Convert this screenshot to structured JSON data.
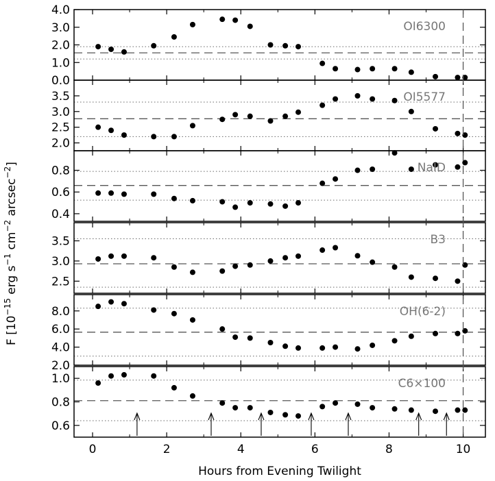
{
  "chart_data": {
    "type": "scatter",
    "xlabel": "Hours from Evening Twilight",
    "ylabel": "F [10^-15 erg s^-1 cm^-2 arcsec^-2]",
    "ylabel_parts": {
      "pre": "F [10",
      "exp1": "−15",
      "mid1": " erg s",
      "exp2": "−1",
      "mid2": " cm",
      "exp3": "−2",
      "mid3": " arcsec",
      "exp4": "−2",
      "post": "]"
    },
    "xlim": [
      -0.5,
      10.6
    ],
    "xticks": [
      0,
      2,
      4,
      6,
      8,
      10
    ],
    "xtick_labels": [
      "0",
      "2",
      "4",
      "6",
      "8",
      "10"
    ],
    "vline_x": 10,
    "arrows_x": [
      1.2,
      3.2,
      4.55,
      5.9,
      6.9,
      8.8,
      9.55
    ],
    "x": [
      0.15,
      0.5,
      0.85,
      1.65,
      2.2,
      2.7,
      3.5,
      3.85,
      4.25,
      4.8,
      5.2,
      5.55,
      6.2,
      6.55,
      7.15,
      7.55,
      8.15,
      8.6,
      9.25,
      9.85,
      10.05
    ],
    "panels": [
      {
        "name": "OI6300",
        "ylim": [
          0.0,
          4.0
        ],
        "yticks": [
          0.0,
          1.0,
          2.0,
          3.0,
          4.0
        ],
        "ytick_labels": [
          "0.0",
          "1.0",
          "2.0",
          "3.0",
          "4.0"
        ],
        "mean": 1.55,
        "sigma_lines": [
          1.2,
          1.9
        ],
        "values": [
          1.9,
          1.75,
          1.6,
          1.95,
          2.45,
          3.15,
          3.45,
          3.4,
          3.05,
          2.0,
          1.95,
          1.9,
          0.95,
          0.65,
          0.6,
          0.65,
          0.65,
          0.45,
          0.2,
          0.15,
          0.15
        ]
      },
      {
        "name": "OI5577",
        "ylim": [
          1.75,
          4.0
        ],
        "yticks": [
          2.0,
          2.5,
          3.0,
          3.5
        ],
        "ytick_labels": [
          "2.0",
          "2.5",
          "3.0",
          "3.5"
        ],
        "mean": 2.77,
        "sigma_lines": [
          2.2,
          3.3
        ],
        "values": [
          2.5,
          2.4,
          2.25,
          2.2,
          2.2,
          2.55,
          2.75,
          2.9,
          2.85,
          2.7,
          2.85,
          2.98,
          3.2,
          3.4,
          3.5,
          3.4,
          3.35,
          3.0,
          2.45,
          2.3,
          2.25
        ]
      },
      {
        "name": "NaID",
        "ylim": [
          0.33,
          0.98
        ],
        "yticks": [
          0.4,
          0.6,
          0.8
        ],
        "ytick_labels": [
          "0.4",
          "0.6",
          "0.8"
        ],
        "mean": 0.66,
        "sigma_lines": [
          0.525,
          0.79
        ],
        "values": [
          0.59,
          0.59,
          0.58,
          0.58,
          0.54,
          0.52,
          0.51,
          0.46,
          0.5,
          0.49,
          0.47,
          0.5,
          0.68,
          0.72,
          0.8,
          0.81,
          0.96,
          0.81,
          0.85,
          0.83,
          0.87
        ]
      },
      {
        "name": "B3",
        "ylim": [
          2.2,
          3.95
        ],
        "yticks": [
          2.5,
          3.0,
          3.5
        ],
        "ytick_labels": [
          "2.5",
          "3.0",
          "3.5"
        ],
        "mean": 2.93,
        "sigma_lines": [
          2.35,
          3.55
        ],
        "values": [
          3.05,
          3.12,
          3.12,
          3.08,
          2.85,
          2.72,
          2.75,
          2.87,
          2.9,
          3.0,
          3.08,
          3.12,
          3.27,
          3.33,
          3.13,
          2.97,
          2.85,
          2.6,
          2.57,
          2.5,
          2.9
        ]
      },
      {
        "name": "OH(6-2)",
        "ylim": [
          2.0,
          9.8
        ],
        "yticks": [
          2.0,
          4.0,
          6.0,
          8.0
        ],
        "ytick_labels": [
          "2.0",
          "4.0",
          "6.0",
          "8.0"
        ],
        "mean": 5.65,
        "sigma_lines": [
          3.0,
          8.3
        ],
        "values": [
          8.5,
          9.0,
          8.8,
          8.1,
          7.7,
          7.0,
          6.0,
          5.1,
          5.0,
          4.5,
          4.1,
          3.9,
          3.9,
          4.0,
          3.8,
          4.2,
          4.7,
          5.2,
          5.5,
          5.5,
          5.8
        ]
      },
      {
        "name": "C6×100",
        "ylim": [
          0.5,
          1.1
        ],
        "yticks": [
          0.6,
          0.8,
          1.0
        ],
        "ytick_labels": [
          "0.6",
          "0.8",
          "1.0"
        ],
        "mean": 0.81,
        "sigma_lines": [
          0.64,
          0.985
        ],
        "values": [
          0.96,
          1.02,
          1.03,
          1.02,
          0.92,
          0.85,
          0.79,
          0.75,
          0.75,
          0.71,
          0.69,
          0.68,
          0.76,
          0.79,
          0.78,
          0.75,
          0.74,
          0.73,
          0.72,
          0.73,
          0.73
        ]
      }
    ]
  }
}
